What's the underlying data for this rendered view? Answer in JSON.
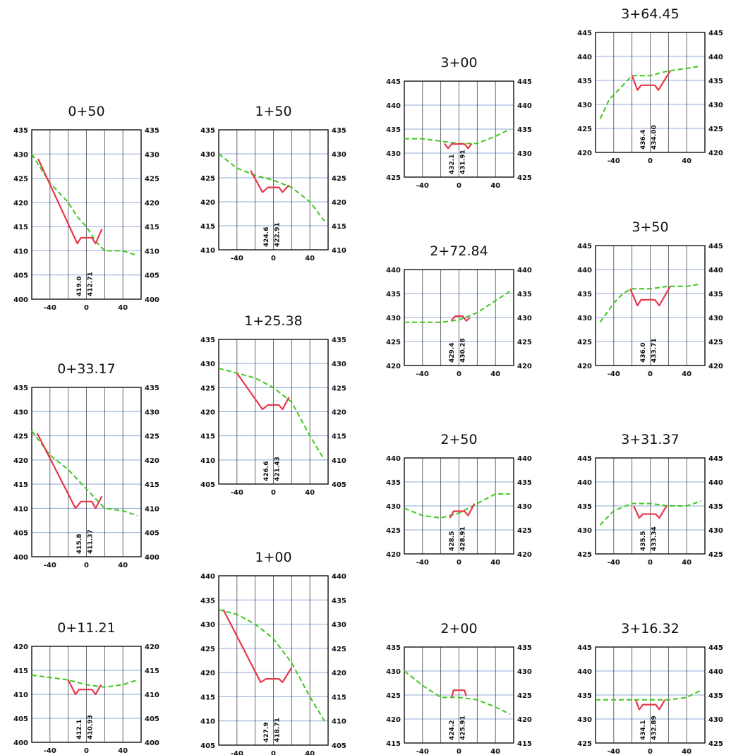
{
  "colors": {
    "grid_vertical": "#444444",
    "grid_horizontal": "#8fa8d8",
    "frame": "#111111",
    "existing_ground": "#3ec81e",
    "proposed_section": "#e8374a"
  },
  "x_axis": {
    "range": [
      -60,
      60
    ],
    "tick_labels": [
      "-40",
      "0",
      "40"
    ]
  },
  "sections": [
    {
      "title": "0+50",
      "ylim": [
        400,
        435
      ],
      "y_ticks": [
        "400",
        "405",
        "410",
        "415",
        "420",
        "425",
        "430",
        "435"
      ],
      "elev_labels": [
        "419.0",
        "412.71"
      ],
      "existing_ground": [
        [
          -60,
          430
        ],
        [
          -50,
          427
        ],
        [
          -40,
          424
        ],
        [
          -20,
          420
        ],
        [
          -10,
          417
        ],
        [
          0,
          415
        ],
        [
          10,
          412
        ],
        [
          20,
          410
        ],
        [
          40,
          410
        ],
        [
          56,
          409
        ]
      ],
      "proposed": [
        [
          -53,
          429
        ],
        [
          -10,
          411.5
        ],
        [
          -6,
          412.7
        ],
        [
          6,
          412.7
        ],
        [
          10,
          411.5
        ],
        [
          17,
          414.5
        ]
      ]
    },
    {
      "title": "1+50",
      "ylim": [
        410,
        435
      ],
      "y_ticks": [
        "410",
        "415",
        "420",
        "425",
        "430",
        "435"
      ],
      "elev_labels": [
        "424.6",
        "422.91"
      ],
      "existing_ground": [
        [
          -60,
          430
        ],
        [
          -40,
          427
        ],
        [
          -20,
          425.5
        ],
        [
          0,
          424.5
        ],
        [
          20,
          423
        ],
        [
          40,
          420
        ],
        [
          56,
          416
        ]
      ],
      "proposed": [
        [
          -25,
          426.5
        ],
        [
          -12,
          422
        ],
        [
          -6,
          423
        ],
        [
          6,
          423
        ],
        [
          10,
          422
        ],
        [
          17,
          423.5
        ]
      ]
    },
    {
      "title": "3+00",
      "ylim": [
        425,
        445
      ],
      "y_ticks": [
        "425",
        "430",
        "435",
        "440",
        "445"
      ],
      "elev_labels": [
        "432.1",
        "431.91"
      ],
      "existing_ground": [
        [
          -60,
          433
        ],
        [
          -40,
          433
        ],
        [
          -20,
          432.5
        ],
        [
          0,
          432
        ],
        [
          20,
          432
        ],
        [
          40,
          433.5
        ],
        [
          56,
          435
        ]
      ],
      "proposed": [
        [
          -16,
          432
        ],
        [
          -12,
          431
        ],
        [
          -8,
          431.9
        ],
        [
          6,
          431.9
        ],
        [
          10,
          431
        ],
        [
          14,
          432
        ]
      ]
    },
    {
      "title": "3+64.45",
      "ylim": [
        420,
        445
      ],
      "y_ticks": [
        "420",
        "425",
        "430",
        "435",
        "440",
        "445"
      ],
      "elev_labels": [
        "436.4",
        "434.00"
      ],
      "existing_ground": [
        [
          -55,
          427
        ],
        [
          -45,
          431
        ],
        [
          -30,
          434
        ],
        [
          -20,
          436
        ],
        [
          0,
          436
        ],
        [
          20,
          437
        ],
        [
          40,
          437.5
        ],
        [
          56,
          438
        ]
      ],
      "proposed": [
        [
          -20,
          436
        ],
        [
          -14,
          433
        ],
        [
          -10,
          434
        ],
        [
          5,
          434
        ],
        [
          9,
          433
        ],
        [
          22,
          437
        ]
      ]
    },
    {
      "title": "1+25.38",
      "ylim": [
        405,
        435
      ],
      "y_ticks": [
        "405",
        "410",
        "415",
        "420",
        "425",
        "430",
        "435"
      ],
      "elev_labels": [
        "426.6",
        "421.43"
      ],
      "existing_ground": [
        [
          -60,
          429
        ],
        [
          -40,
          428
        ],
        [
          -20,
          427
        ],
        [
          0,
          425
        ],
        [
          20,
          422
        ],
        [
          40,
          415
        ],
        [
          56,
          410
        ]
      ],
      "proposed": [
        [
          -40,
          428
        ],
        [
          -12,
          420.5
        ],
        [
          -6,
          421.4
        ],
        [
          6,
          421.4
        ],
        [
          10,
          420.5
        ],
        [
          17,
          423
        ]
      ]
    },
    {
      "title": "2+72.84",
      "ylim": [
        420,
        440
      ],
      "y_ticks": [
        "420",
        "425",
        "430",
        "435",
        "440"
      ],
      "elev_labels": [
        "429.4",
        "430.28"
      ],
      "existing_ground": [
        [
          -60,
          429
        ],
        [
          -40,
          429
        ],
        [
          -20,
          429
        ],
        [
          0,
          429.5
        ],
        [
          20,
          431
        ],
        [
          40,
          433.5
        ],
        [
          56,
          435.5
        ]
      ],
      "proposed": [
        [
          -8,
          429.5
        ],
        [
          -4,
          430.3
        ],
        [
          4,
          430.3
        ],
        [
          8,
          429.3
        ],
        [
          12,
          430
        ]
      ]
    },
    {
      "title": "3+50",
      "ylim": [
        420,
        445
      ],
      "y_ticks": [
        "420",
        "425",
        "430",
        "435",
        "440",
        "445"
      ],
      "elev_labels": [
        "436.0",
        "433.71"
      ],
      "existing_ground": [
        [
          -55,
          429
        ],
        [
          -40,
          433
        ],
        [
          -30,
          435
        ],
        [
          -20,
          436
        ],
        [
          0,
          436
        ],
        [
          20,
          436.5
        ],
        [
          40,
          436.5
        ],
        [
          56,
          437
        ]
      ],
      "proposed": [
        [
          -22,
          436
        ],
        [
          -14,
          432.5
        ],
        [
          -10,
          433.7
        ],
        [
          5,
          433.7
        ],
        [
          10,
          432.5
        ],
        [
          22,
          436.5
        ]
      ]
    },
    {
      "title": "0+33.17",
      "ylim": [
        400,
        435
      ],
      "y_ticks": [
        "400",
        "405",
        "410",
        "415",
        "420",
        "425",
        "430",
        "435"
      ],
      "elev_labels": [
        "415.8",
        "411.37"
      ],
      "existing_ground": [
        [
          -60,
          426
        ],
        [
          -40,
          421
        ],
        [
          -20,
          418
        ],
        [
          0,
          414
        ],
        [
          20,
          410
        ],
        [
          40,
          409.5
        ],
        [
          56,
          408.5
        ]
      ],
      "proposed": [
        [
          -54,
          425.5
        ],
        [
          -12,
          410
        ],
        [
          -6,
          411.4
        ],
        [
          6,
          411.4
        ],
        [
          10,
          410
        ],
        [
          17,
          412.5
        ]
      ]
    },
    {
      "title": "2+50",
      "ylim": [
        420,
        440
      ],
      "y_ticks": [
        "420",
        "425",
        "430",
        "435",
        "440"
      ],
      "elev_labels": [
        "428.5",
        "428.91"
      ],
      "existing_ground": [
        [
          -60,
          429.5
        ],
        [
          -40,
          428
        ],
        [
          -20,
          427.5
        ],
        [
          0,
          428.5
        ],
        [
          20,
          430.5
        ],
        [
          40,
          432.5
        ],
        [
          56,
          432.5
        ]
      ],
      "proposed": [
        [
          -10,
          427.5
        ],
        [
          -6,
          428.9
        ],
        [
          6,
          428.9
        ],
        [
          10,
          428
        ],
        [
          17,
          430.5
        ]
      ]
    },
    {
      "title": "3+31.37",
      "ylim": [
        425,
        445
      ],
      "y_ticks": [
        "425",
        "430",
        "435",
        "440",
        "445"
      ],
      "elev_labels": [
        "435.5",
        "433.34"
      ],
      "existing_ground": [
        [
          -55,
          431
        ],
        [
          -40,
          434
        ],
        [
          -20,
          435.5
        ],
        [
          0,
          435.5
        ],
        [
          20,
          435
        ],
        [
          40,
          435
        ],
        [
          56,
          436
        ]
      ],
      "proposed": [
        [
          -18,
          435
        ],
        [
          -12,
          432.5
        ],
        [
          -8,
          433.3
        ],
        [
          6,
          433.3
        ],
        [
          10,
          432.5
        ],
        [
          18,
          435
        ]
      ]
    },
    {
      "title": "1+00",
      "ylim": [
        405,
        440
      ],
      "y_ticks": [
        "405",
        "410",
        "415",
        "420",
        "425",
        "430",
        "435",
        "440"
      ],
      "elev_labels": [
        "427.9",
        "418.71"
      ],
      "existing_ground": [
        [
          -60,
          433
        ],
        [
          -40,
          432
        ],
        [
          -20,
          430
        ],
        [
          0,
          427
        ],
        [
          20,
          422
        ],
        [
          40,
          415
        ],
        [
          56,
          410
        ]
      ],
      "proposed": [
        [
          -55,
          433
        ],
        [
          -14,
          418
        ],
        [
          -8,
          418.7
        ],
        [
          6,
          418.7
        ],
        [
          10,
          418
        ],
        [
          20,
          421
        ]
      ]
    },
    {
      "title": "0+11.21",
      "ylim": [
        400,
        420
      ],
      "y_ticks": [
        "400",
        "405",
        "410",
        "415",
        "420"
      ],
      "elev_labels": [
        "412.1",
        "410.93"
      ],
      "existing_ground": [
        [
          -60,
          414
        ],
        [
          -40,
          413.5
        ],
        [
          -20,
          413
        ],
        [
          0,
          412
        ],
        [
          20,
          411.5
        ],
        [
          40,
          412
        ],
        [
          56,
          413
        ]
      ],
      "proposed": [
        [
          -20,
          413
        ],
        [
          -12,
          410
        ],
        [
          -8,
          411
        ],
        [
          6,
          411
        ],
        [
          10,
          410
        ],
        [
          16,
          412
        ]
      ]
    },
    {
      "title": "2+00",
      "ylim": [
        415,
        435
      ],
      "y_ticks": [
        "415",
        "420",
        "425",
        "430",
        "435"
      ],
      "elev_labels": [
        "424.2",
        "425.91"
      ],
      "existing_ground": [
        [
          -60,
          430
        ],
        [
          -40,
          427
        ],
        [
          -20,
          424.5
        ],
        [
          0,
          424.5
        ],
        [
          20,
          424
        ],
        [
          40,
          422.5
        ],
        [
          56,
          421
        ]
      ],
      "proposed": [
        [
          -8,
          424.5
        ],
        [
          -6,
          426
        ],
        [
          6,
          426
        ],
        [
          8,
          424.8
        ]
      ]
    },
    {
      "title": "3+16.32",
      "ylim": [
        425,
        445
      ],
      "y_ticks": [
        "425",
        "430",
        "435",
        "440",
        "445"
      ],
      "elev_labels": [
        "434.1",
        "432.89"
      ],
      "existing_ground": [
        [
          -60,
          434
        ],
        [
          -40,
          434
        ],
        [
          -20,
          434
        ],
        [
          0,
          434
        ],
        [
          20,
          434
        ],
        [
          40,
          434.5
        ],
        [
          56,
          436
        ]
      ],
      "proposed": [
        [
          -16,
          434
        ],
        [
          -12,
          432
        ],
        [
          -8,
          433
        ],
        [
          6,
          433
        ],
        [
          10,
          432
        ],
        [
          16,
          434
        ]
      ]
    }
  ]
}
